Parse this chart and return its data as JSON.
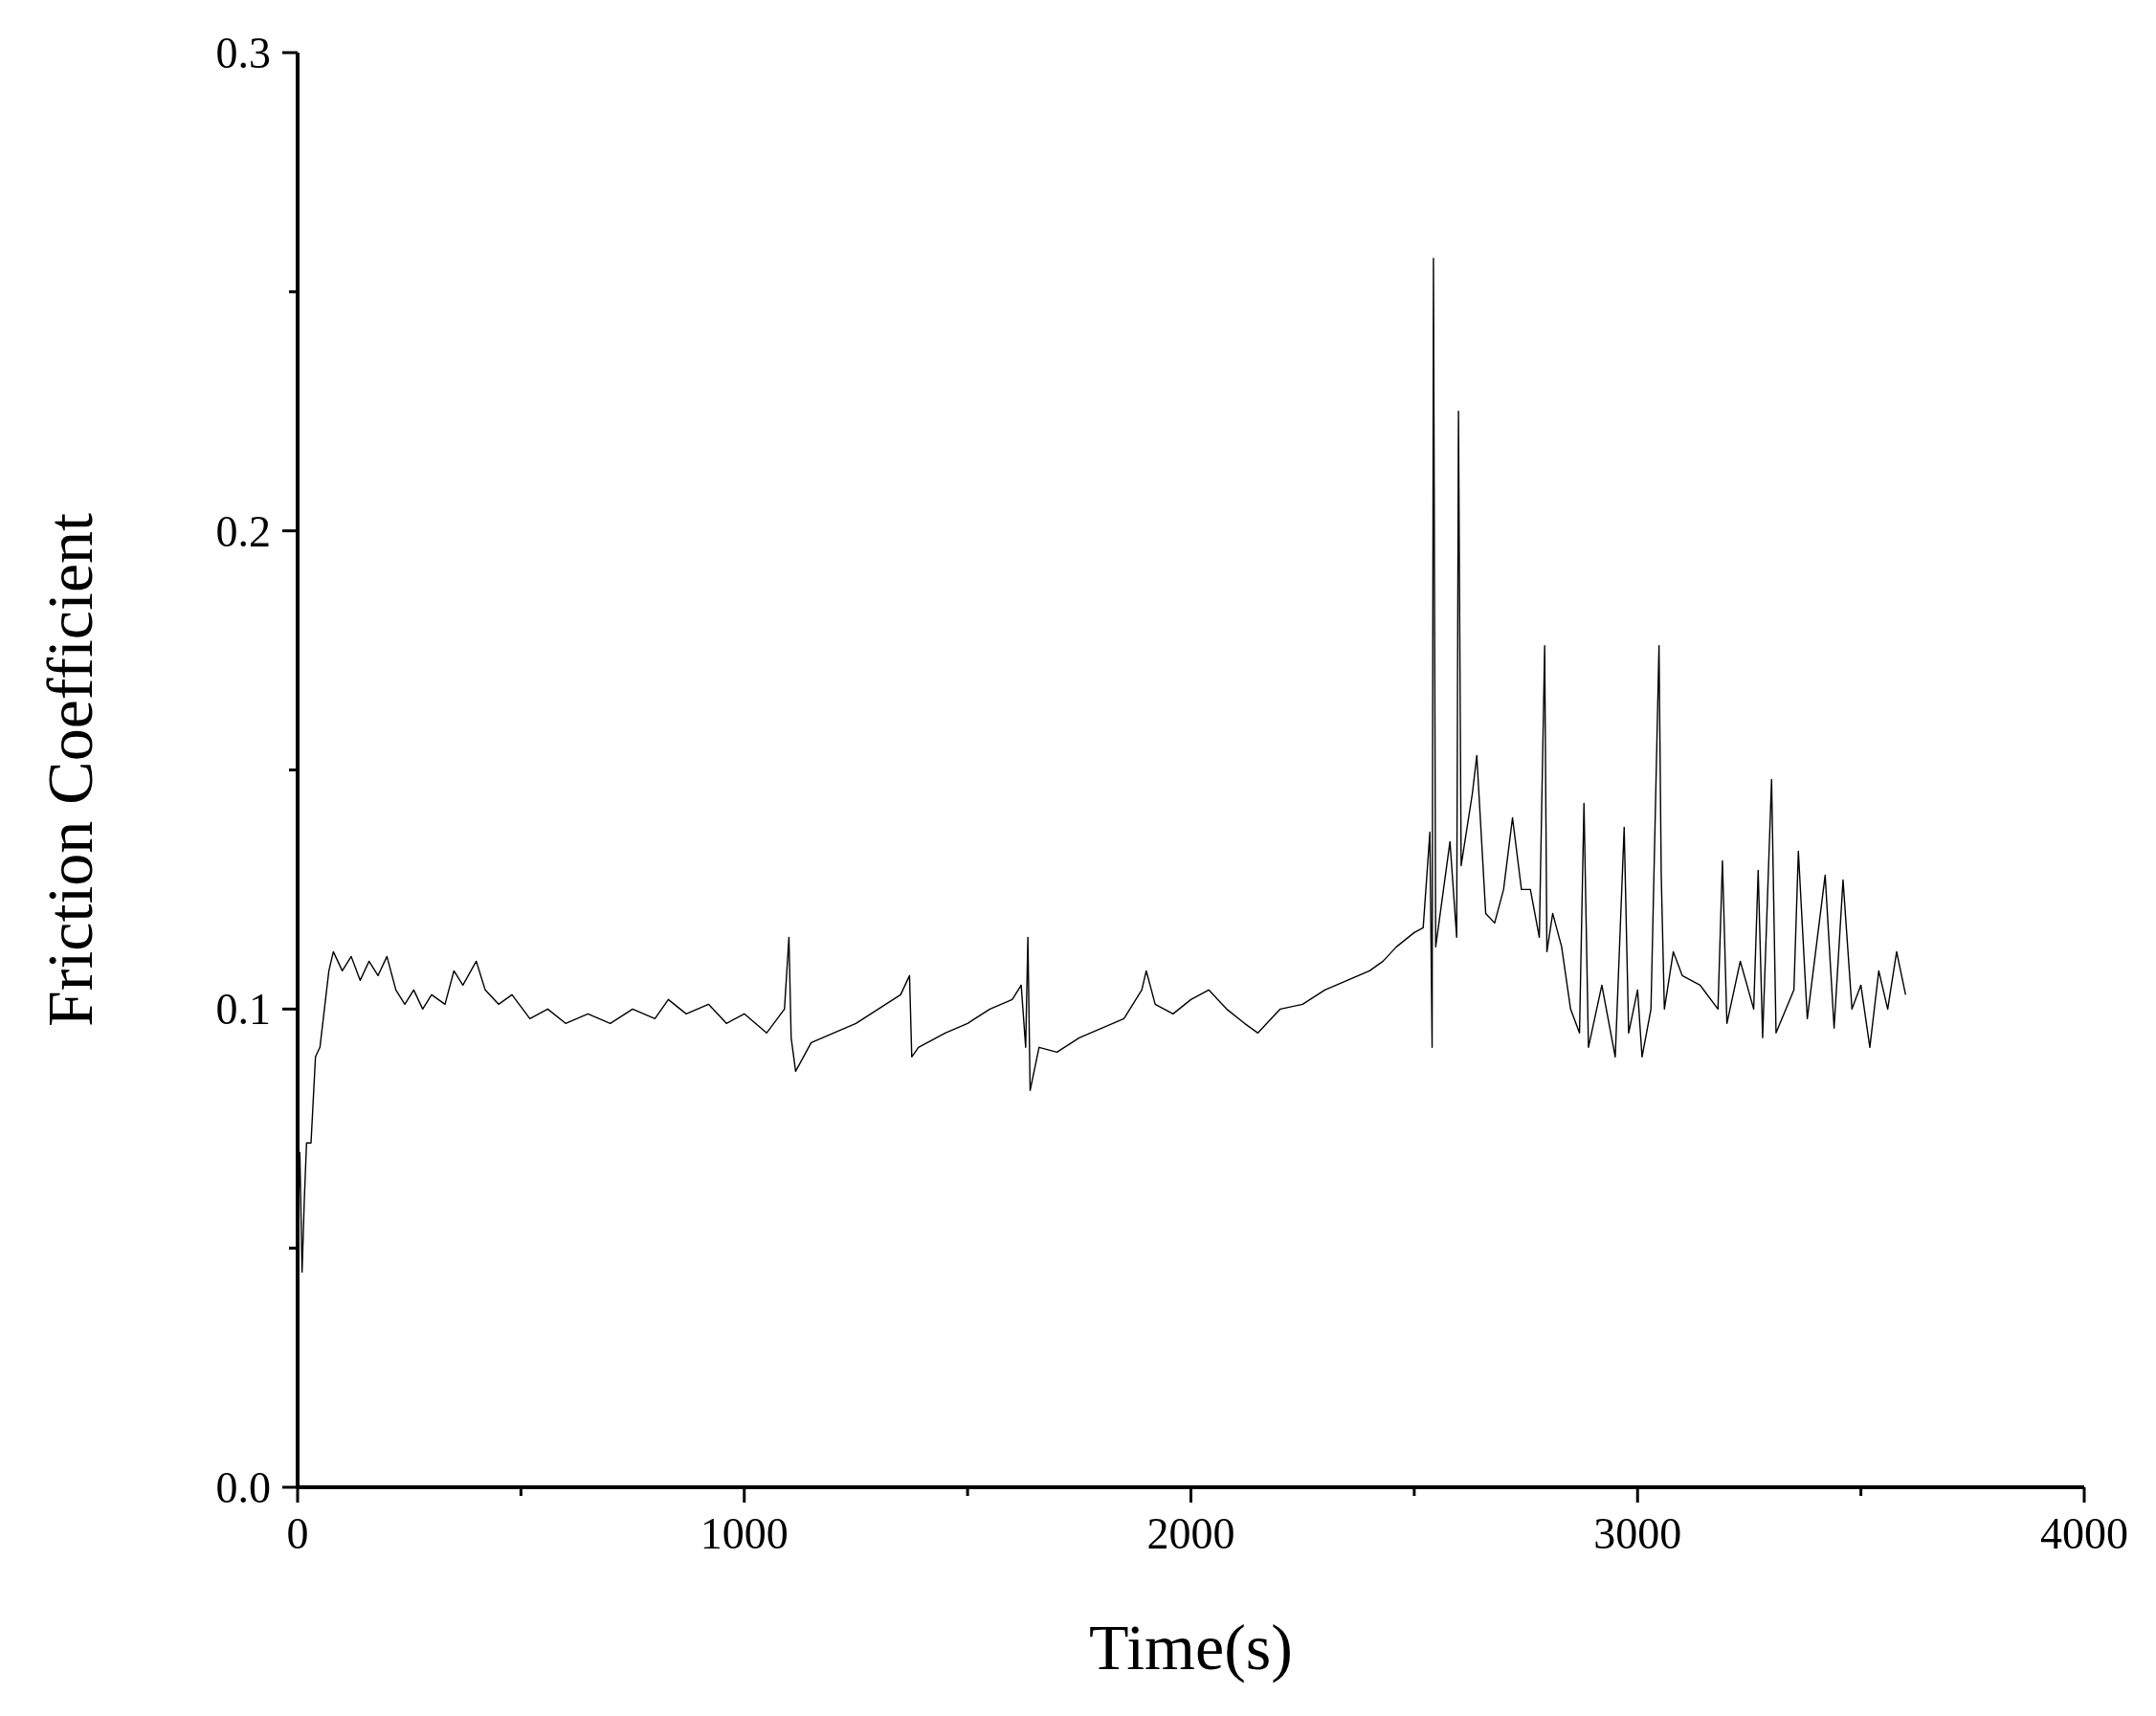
{
  "chart_data": {
    "type": "line",
    "xlabel": "Time(s)",
    "ylabel": "Friction Coefficient",
    "xlim": [
      0,
      4000
    ],
    "ylim": [
      0,
      0.3
    ],
    "xticks": [
      0,
      {
        "value": 500,
        "label": null
      },
      1000,
      {
        "value": 1500,
        "label": null
      },
      2000,
      {
        "value": 2500,
        "label": null
      },
      3000,
      {
        "value": 3500,
        "label": null
      },
      4000
    ],
    "yticks": [
      {
        "value": 0,
        "label": "0.0"
      },
      {
        "value": 0.05,
        "label": null
      },
      0.1,
      {
        "value": 0.15,
        "label": null
      },
      0.2,
      {
        "value": 0.25,
        "label": null
      },
      0.3
    ],
    "grid": false,
    "line_style": "solid",
    "marker": "none",
    "series": [
      {
        "color": "#000000",
        "x": [
          0,
          5,
          10,
          15,
          20,
          30,
          40,
          50,
          60,
          70,
          80,
          100,
          120,
          140,
          160,
          180,
          200,
          220,
          240,
          260,
          280,
          300,
          330,
          350,
          370,
          400,
          420,
          450,
          480,
          520,
          560,
          600,
          650,
          700,
          750,
          800,
          830,
          870,
          920,
          960,
          1000,
          1050,
          1090,
          1100,
          1105,
          1115,
          1150,
          1200,
          1250,
          1300,
          1350,
          1370,
          1375,
          1390,
          1450,
          1500,
          1550,
          1600,
          1620,
          1630,
          1635,
          1640,
          1660,
          1700,
          1750,
          1800,
          1850,
          1890,
          1900,
          1920,
          1960,
          2000,
          2040,
          2080,
          2120,
          2150,
          2200,
          2250,
          2300,
          2350,
          2400,
          2430,
          2460,
          2500,
          2520,
          2535,
          2540,
          2543,
          2548,
          2580,
          2595,
          2599,
          2605,
          2630,
          2640,
          2660,
          2680,
          2700,
          2720,
          2740,
          2760,
          2780,
          2792,
          2797,
          2810,
          2830,
          2850,
          2870,
          2880,
          2890,
          2920,
          2950,
          2970,
          2980,
          3000,
          3010,
          3030,
          3048,
          3053,
          3060,
          3080,
          3100,
          3140,
          3180,
          3190,
          3200,
          3230,
          3260,
          3270,
          3280,
          3300,
          3310,
          3350,
          3360,
          3380,
          3420,
          3440,
          3460,
          3480,
          3500,
          3520,
          3540,
          3560,
          3580,
          3600
        ],
        "values": [
          0.05,
          0.07,
          0.045,
          0.06,
          0.072,
          0.072,
          0.09,
          0.092,
          0.1,
          0.108,
          0.112,
          0.108,
          0.111,
          0.106,
          0.11,
          0.107,
          0.111,
          0.104,
          0.101,
          0.104,
          0.1,
          0.103,
          0.101,
          0.108,
          0.105,
          0.11,
          0.104,
          0.101,
          0.103,
          0.098,
          0.1,
          0.097,
          0.099,
          0.097,
          0.1,
          0.098,
          0.102,
          0.099,
          0.101,
          0.097,
          0.099,
          0.095,
          0.1,
          0.115,
          0.094,
          0.087,
          0.093,
          0.095,
          0.097,
          0.1,
          0.103,
          0.107,
          0.09,
          0.092,
          0.095,
          0.097,
          0.1,
          0.102,
          0.105,
          0.092,
          0.115,
          0.083,
          0.092,
          0.091,
          0.094,
          0.096,
          0.098,
          0.104,
          0.108,
          0.101,
          0.099,
          0.102,
          0.104,
          0.1,
          0.097,
          0.095,
          0.1,
          0.101,
          0.104,
          0.106,
          0.108,
          0.11,
          0.113,
          0.116,
          0.117,
          0.137,
          0.092,
          0.257,
          0.113,
          0.135,
          0.115,
          0.225,
          0.13,
          0.145,
          0.153,
          0.12,
          0.118,
          0.125,
          0.14,
          0.125,
          0.125,
          0.115,
          0.176,
          0.112,
          0.12,
          0.113,
          0.1,
          0.095,
          0.143,
          0.092,
          0.105,
          0.09,
          0.138,
          0.095,
          0.104,
          0.09,
          0.1,
          0.176,
          0.128,
          0.1,
          0.112,
          0.107,
          0.105,
          0.1,
          0.131,
          0.097,
          0.11,
          0.1,
          0.129,
          0.094,
          0.148,
          0.095,
          0.104,
          0.133,
          0.098,
          0.128,
          0.096,
          0.127,
          0.1,
          0.105,
          0.092,
          0.108,
          0.1,
          0.112,
          0.103
        ]
      }
    ]
  }
}
